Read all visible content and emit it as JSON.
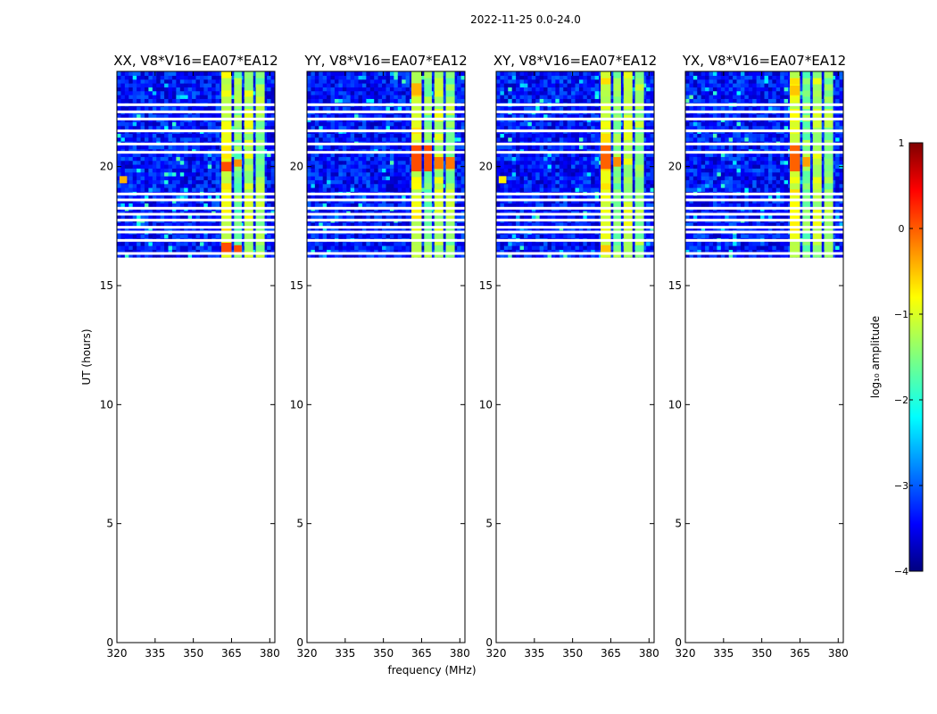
{
  "chart_data": {
    "type": "heatmap",
    "suptitle": "2022-11-25 0.0-24.0",
    "xlabel": "frequency (MHz)",
    "ylabel": "UT (hours)",
    "xlim": [
      320,
      382
    ],
    "ylim": [
      0,
      24
    ],
    "xticks": [
      320,
      335,
      350,
      365,
      380
    ],
    "yticks": [
      0,
      5,
      10,
      15,
      20
    ],
    "data_time_range": [
      16.2,
      24
    ],
    "flagged_time_rows": [
      16.35,
      16.9,
      17.25,
      17.45,
      17.75,
      18.0,
      18.25,
      18.6,
      18.85,
      20.6,
      20.95,
      21.5,
      22.0,
      22.3,
      22.6
    ],
    "bright_channel_columns": [
      {
        "freq": [
          361,
          365
        ],
        "level": -1.0
      },
      {
        "freq": [
          366,
          369
        ],
        "level": -1.5
      },
      {
        "freq": [
          370,
          373.5
        ],
        "level": -1.2
      },
      {
        "freq": [
          374.5,
          378
        ],
        "level": -1.4
      }
    ],
    "panels": [
      {
        "title": "XX, V8*V16=EA07*EA12",
        "hot_spots": [
          {
            "freq": [
              361,
              365
            ],
            "time": [
              16.3,
              16.8
            ],
            "level": 0.0
          },
          {
            "freq": [
              366,
              369
            ],
            "time": [
              16.3,
              16.7
            ],
            "level": 0.0
          },
          {
            "freq": [
              361,
              365
            ],
            "time": [
              19.8,
              20.2
            ],
            "level": 0.0
          },
          {
            "freq": [
              366,
              369
            ],
            "time": [
              20.0,
              20.3
            ],
            "level": -0.3
          },
          {
            "freq": [
              321,
              324
            ],
            "time": [
              19.3,
              19.6
            ],
            "level": -0.5
          }
        ]
      },
      {
        "title": "YY, V8*V16=EA07*EA12",
        "hot_spots": [
          {
            "freq": [
              361,
              365
            ],
            "time": [
              19.8,
              20.9
            ],
            "level": 0.0
          },
          {
            "freq": [
              366,
              369
            ],
            "time": [
              19.8,
              20.9
            ],
            "level": 0.0
          },
          {
            "freq": [
              370,
              373.5
            ],
            "time": [
              19.9,
              20.4
            ],
            "level": -0.2
          },
          {
            "freq": [
              374.5,
              378
            ],
            "time": [
              19.9,
              20.4
            ],
            "level": -0.2
          },
          {
            "freq": [
              361,
              365
            ],
            "time": [
              23.0,
              23.5
            ],
            "level": -0.5
          }
        ]
      },
      {
        "title": "XY, V8*V16=EA07*EA12",
        "hot_spots": [
          {
            "freq": [
              361,
              365
            ],
            "time": [
              19.9,
              20.9
            ],
            "level": -0.1
          },
          {
            "freq": [
              366,
              369
            ],
            "time": [
              20.0,
              20.4
            ],
            "level": -0.3
          },
          {
            "freq": [
              361,
              365
            ],
            "time": [
              16.4,
              16.7
            ],
            "level": -0.6
          },
          {
            "freq": [
              321,
              324
            ],
            "time": [
              19.3,
              19.6
            ],
            "level": -0.8
          }
        ]
      },
      {
        "title": "YX, V8*V16=EA07*EA12",
        "hot_spots": [
          {
            "freq": [
              361,
              365
            ],
            "time": [
              19.8,
              20.9
            ],
            "level": -0.1
          },
          {
            "freq": [
              366,
              369
            ],
            "time": [
              20.0,
              20.4
            ],
            "level": -0.4
          },
          {
            "freq": [
              361,
              365
            ],
            "time": [
              23.0,
              23.4
            ],
            "level": -0.6
          }
        ]
      }
    ],
    "colorbar": {
      "label": "log₁₀ amplitude",
      "range": [
        -4,
        1
      ],
      "ticks": [
        1,
        0,
        -1,
        -2,
        -3,
        -4
      ],
      "tick_labels": [
        "1",
        "0",
        "−1",
        "−2",
        "−3",
        "−4"
      ],
      "colormap": "jet"
    }
  }
}
